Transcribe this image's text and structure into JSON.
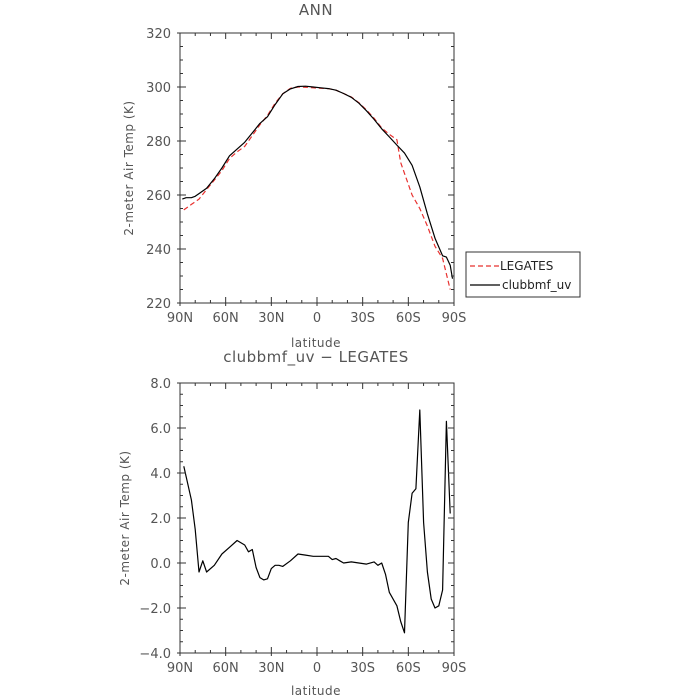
{
  "colors": {
    "axis": "#333333",
    "text": "#555555",
    "legates": "#e8312f",
    "clubbmf_uv": "#000000"
  },
  "chart_data": [
    {
      "type": "line",
      "title": "ANN",
      "xlabel": "latitude",
      "ylabel": "2-meter Air Temp (K)",
      "xlim": [
        90,
        -90
      ],
      "ylim": [
        220,
        320
      ],
      "xticks": [
        90,
        60,
        30,
        0,
        -30,
        -60,
        -90
      ],
      "xtick_labels": [
        "90N",
        "60N",
        "30N",
        "0",
        "30S",
        "60S",
        "90S"
      ],
      "yticks": [
        220,
        240,
        260,
        280,
        300,
        320
      ],
      "ytick_labels": [
        "220",
        "240",
        "260",
        "280",
        "300",
        "320"
      ],
      "legend": {
        "position": "right",
        "entries": [
          "LEGATES",
          "clubbmf_uv"
        ]
      },
      "series": [
        {
          "name": "LEGATES",
          "style": "dashed",
          "x": [
            87.5,
            82.5,
            77.5,
            72.5,
            67.5,
            62.5,
            57.5,
            52.5,
            47.5,
            42.5,
            37.5,
            32.5,
            27.5,
            22.5,
            17.5,
            12.5,
            7.5,
            2.5,
            -2.5,
            -7.5,
            -12.5,
            -17.5,
            -22.5,
            -27.5,
            -32.5,
            -37.5,
            -42.5,
            -47.5,
            -52.5,
            -55.0,
            -57.5,
            -62.5,
            -67.5,
            -72.5,
            -77.5,
            -82.5,
            -87.5
          ],
          "y": [
            254.5,
            256.5,
            258.5,
            262.0,
            265.5,
            269.0,
            273.5,
            276.0,
            278.0,
            282.0,
            286.0,
            289.5,
            294.0,
            297.5,
            299.5,
            300.0,
            299.9,
            299.7,
            299.5,
            299.4,
            298.8,
            297.6,
            296.3,
            294.2,
            291.5,
            288.4,
            284.8,
            282.5,
            280.5,
            272.0,
            268.0,
            260.0,
            255.0,
            248.5,
            241.0,
            236.5,
            225.0
          ]
        },
        {
          "name": "clubbmf_uv",
          "style": "solid",
          "x": [
            88.5,
            86.0,
            82.5,
            80.0,
            77.5,
            72.5,
            67.5,
            62.5,
            57.5,
            52.5,
            47.5,
            42.5,
            37.5,
            32.5,
            27.5,
            22.5,
            17.5,
            12.5,
            7.5,
            2.5,
            -2.5,
            -7.5,
            -12.5,
            -17.5,
            -22.5,
            -27.5,
            -32.5,
            -37.5,
            -42.5,
            -47.5,
            -52.5,
            -57.5,
            -62.5,
            -67.5,
            -72.5,
            -77.5,
            -82.5,
            -85.0,
            -87.5,
            -89.0
          ],
          "y": [
            258.5,
            259.0,
            259.0,
            259.5,
            260.5,
            262.5,
            266.0,
            270.0,
            274.5,
            277.0,
            279.5,
            283.0,
            286.5,
            289.0,
            293.5,
            297.5,
            299.3,
            300.2,
            300.3,
            300.0,
            299.7,
            299.4,
            298.8,
            297.6,
            296.2,
            294.0,
            291.2,
            288.0,
            284.5,
            281.5,
            278.5,
            275.5,
            271.0,
            263.0,
            253.0,
            244.0,
            237.5,
            237.0,
            234.0,
            229.0
          ]
        }
      ]
    },
    {
      "type": "line",
      "title": "clubbmf_uv − LEGATES",
      "xlabel": "latitude",
      "ylabel": "2-meter Air Temp (K)",
      "xlim": [
        90,
        -90
      ],
      "ylim": [
        -4.0,
        8.0
      ],
      "xticks": [
        90,
        60,
        30,
        0,
        -30,
        -60,
        -90
      ],
      "xtick_labels": [
        "90N",
        "60N",
        "30N",
        "0",
        "30S",
        "60S",
        "90S"
      ],
      "yticks": [
        -4,
        -2,
        0,
        2,
        4,
        6,
        8
      ],
      "ytick_labels": [
        "−4.0",
        "−2.0",
        "0.0",
        "2.0",
        "4.0",
        "6.0",
        "8.0"
      ],
      "series": [
        {
          "x": [
            87.5,
            82.5,
            80.0,
            77.5,
            75.0,
            72.5,
            67.5,
            62.5,
            57.5,
            52.5,
            47.5,
            45.0,
            42.5,
            40.0,
            37.5,
            35.0,
            32.5,
            30.0,
            27.5,
            25.0,
            22.5,
            17.5,
            12.5,
            7.5,
            2.5,
            -2.5,
            -7.5,
            -10.0,
            -12.5,
            -15.0,
            -17.5,
            -22.5,
            -27.5,
            -32.5,
            -37.5,
            -40.0,
            -42.5,
            -45.0,
            -47.5,
            -52.5,
            -55.0,
            -57.5,
            -60.0,
            -62.5,
            -65.0,
            -67.5,
            -70.0,
            -72.5,
            -75.0,
            -77.5,
            -80.0,
            -82.5,
            -85.0,
            -87.5
          ],
          "y": [
            4.3,
            2.8,
            1.5,
            -0.4,
            0.1,
            -0.4,
            -0.1,
            0.4,
            0.7,
            1.0,
            0.8,
            0.5,
            0.6,
            -0.2,
            -0.65,
            -0.75,
            -0.7,
            -0.25,
            -0.1,
            -0.1,
            -0.15,
            0.1,
            0.4,
            0.35,
            0.3,
            0.3,
            0.3,
            0.15,
            0.2,
            0.1,
            0.0,
            0.05,
            0.0,
            -0.05,
            0.05,
            -0.1,
            0.0,
            -0.5,
            -1.3,
            -1.9,
            -2.6,
            -3.1,
            1.8,
            3.1,
            3.3,
            6.8,
            1.8,
            -0.4,
            -1.6,
            -2.0,
            -1.9,
            -1.2,
            6.3,
            2.2
          ]
        }
      ]
    }
  ]
}
